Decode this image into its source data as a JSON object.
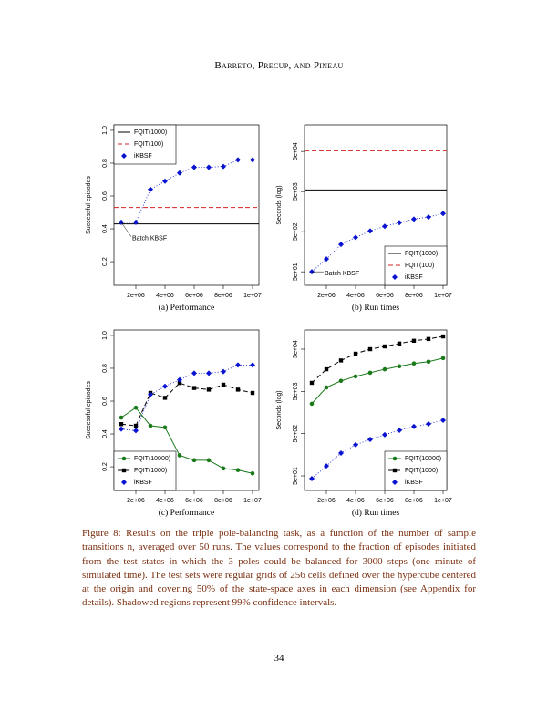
{
  "header": "Barreto, Precup, and Pineau",
  "caption": "Figure 8: Results on the triple pole-balancing task, as a function of the number of sample transitions n, averaged over 50 runs. The values correspond to the fraction of episodes initiated from the test states in which the 3 poles could be balanced for 3000 steps (one minute of simulated time). The test sets were regular grids of 256 cells defined over the hypercube centered at the origin and covering 50% of the state-space axes in each dimension (see Appendix  for details). Shadowed regions represent 99% confidence intervals.",
  "page_number": "34",
  "chart_data": [
    {
      "type": "line",
      "subcaption": "(a) Performance",
      "y_label": "Successful episodes",
      "log_y": false,
      "legend": "top-left",
      "x": [
        1000000,
        2000000,
        3000000,
        4000000,
        5000000,
        6000000,
        7000000,
        8000000,
        9000000,
        10000000
      ],
      "xlim": [
        500000,
        10437500
      ],
      "xticks": [
        {
          "value": 2000000,
          "label": "2e+06"
        },
        {
          "value": 4000000,
          "label": "4e+06"
        },
        {
          "value": 6000000,
          "label": "6e+06"
        },
        {
          "value": 8000000,
          "label": "8e+06"
        },
        {
          "value": 10000000,
          "label": "1e+07"
        }
      ],
      "ylim": [
        0.056,
        1.033
      ],
      "yticks": [
        0.2,
        0.4,
        0.6,
        0.8,
        {
          "value": 1.0,
          "label": "1.0"
        }
      ],
      "series": [
        {
          "name": "FQIT(1000)",
          "color": "#000000",
          "line": "solid",
          "marker": null,
          "hline": 0.43
        },
        {
          "name": "FQIT(100)",
          "color": "#d62020",
          "line": "dashed",
          "marker": null,
          "hline": 0.53
        },
        {
          "name": "iKBSF",
          "color": "#0a14d0",
          "line": "dotted",
          "marker": "diamond",
          "values": [
            0.44,
            0.44,
            0.64,
            0.69,
            0.74,
            0.775,
            0.775,
            0.78,
            0.82,
            0.82
          ]
        }
      ],
      "annotation": {
        "text": "Batch KBSF",
        "x": 1000000,
        "y": 0.44
      }
    },
    {
      "type": "line",
      "subcaption": "(b) Run times",
      "y_label": "Seconds (log)",
      "log_y": true,
      "legend": "bottom-right",
      "x": [
        1000000,
        2000000,
        3000000,
        4000000,
        5000000,
        6000000,
        7000000,
        8000000,
        9000000,
        10000000
      ],
      "xlim": [
        500000,
        10250000
      ],
      "xticks": [
        {
          "value": 2000000,
          "label": "2e+06"
        },
        {
          "value": 4000000,
          "label": "4e+06"
        },
        {
          "value": 6000000,
          "label": "6e+06"
        },
        {
          "value": 8000000,
          "label": "8e+06"
        },
        {
          "value": 10000000,
          "label": "1e+07"
        }
      ],
      "ylim": [
        23,
        230000
      ],
      "yticks": [
        {
          "value": 50,
          "label": "5e+01"
        },
        {
          "value": 500,
          "label": "5e+02"
        },
        {
          "value": 5000,
          "label": "5e+03"
        },
        {
          "value": 50000,
          "label": "5e+04"
        }
      ],
      "series": [
        {
          "name": "FQIT(1000)",
          "color": "#000000",
          "line": "solid",
          "marker": null,
          "hline": 5500
        },
        {
          "name": "FQIT(100)",
          "color": "#d62020",
          "line": "dashed",
          "marker": null,
          "hline": 52000
        },
        {
          "name": "iKBSF",
          "color": "#0a14d0",
          "line": "dotted",
          "marker": "diamond",
          "values": [
            50,
            104,
            240,
            360,
            520,
            680,
            840,
            1030,
            1160,
            1420
          ]
        }
      ],
      "annotation": {
        "text": "Batch KBSF",
        "x": 1000000,
        "y": 50
      }
    },
    {
      "type": "line",
      "subcaption": "(c) Performance",
      "y_label": "Successful episodes",
      "log_y": false,
      "legend": "bottom-left",
      "x": [
        1000000,
        2000000,
        3000000,
        4000000,
        5000000,
        6000000,
        7000000,
        8000000,
        9000000,
        10000000
      ],
      "xlim": [
        500000,
        10437500
      ],
      "xticks": [
        {
          "value": 2000000,
          "label": "2e+06"
        },
        {
          "value": 4000000,
          "label": "4e+06"
        },
        {
          "value": 6000000,
          "label": "6e+06"
        },
        {
          "value": 8000000,
          "label": "8e+06"
        },
        {
          "value": 10000000,
          "label": "1e+07"
        }
      ],
      "ylim": [
        0.056,
        1.033
      ],
      "yticks": [
        0.2,
        0.4,
        0.6,
        0.8,
        {
          "value": 1.0,
          "label": "1.0"
        }
      ],
      "series": [
        {
          "name": "FQIT(10000)",
          "color": "#1a7a1a",
          "line": "solid",
          "marker": "circle",
          "values": [
            0.5,
            0.56,
            0.45,
            0.44,
            0.27,
            0.24,
            0.24,
            0.19,
            0.18,
            0.16
          ]
        },
        {
          "name": "FQIT(1000)",
          "color": "#000000",
          "line": "dashed",
          "marker": "square",
          "values": [
            0.46,
            0.45,
            0.65,
            0.62,
            0.71,
            0.68,
            0.67,
            0.7,
            0.67,
            0.65
          ]
        },
        {
          "name": "iKBSF",
          "color": "#0a14d0",
          "line": "dotted",
          "marker": "diamond",
          "values": [
            0.43,
            0.42,
            0.64,
            0.69,
            0.73,
            0.77,
            0.77,
            0.78,
            0.82,
            0.82
          ]
        }
      ]
    },
    {
      "type": "line",
      "subcaption": "(d) Run times",
      "y_label": "Seconds (log)",
      "log_y": true,
      "legend": "bottom-right",
      "x": [
        1000000,
        2000000,
        3000000,
        4000000,
        5000000,
        6000000,
        7000000,
        8000000,
        9000000,
        10000000
      ],
      "xlim": [
        500000,
        10250000
      ],
      "xticks": [
        {
          "value": 2000000,
          "label": "2e+06"
        },
        {
          "value": 4000000,
          "label": "4e+06"
        },
        {
          "value": 6000000,
          "label": "6e+06"
        },
        {
          "value": 8000000,
          "label": "8e+06"
        },
        {
          "value": 10000000,
          "label": "1e+07"
        }
      ],
      "ylim": [
        22.6,
        142000
      ],
      "yticks": [
        {
          "value": 50,
          "label": "5e+01"
        },
        {
          "value": 500,
          "label": "5e+02"
        },
        {
          "value": 5000,
          "label": "5e+03"
        },
        {
          "value": 50000,
          "label": "5e+04"
        }
      ],
      "series": [
        {
          "name": "FQIT(10000)",
          "color": "#1a7a1a",
          "line": "solid",
          "marker": "circle",
          "values": [
            2550,
            6200,
            8900,
            11300,
            13800,
            16700,
            19700,
            22900,
            25200,
            30600
          ]
        },
        {
          "name": "FQIT(1000)",
          "color": "#000000",
          "line": "dashed",
          "marker": "square",
          "values": [
            7960,
            16700,
            27000,
            39000,
            50000,
            58000,
            68000,
            79000,
            87000,
            100000
          ]
        },
        {
          "name": "iKBSF",
          "color": "#0a14d0",
          "line": "dotted",
          "marker": "diamond",
          "values": [
            43,
            86,
            173,
            272,
            365,
            470,
            600,
            735,
            850,
            1040
          ]
        }
      ]
    }
  ]
}
